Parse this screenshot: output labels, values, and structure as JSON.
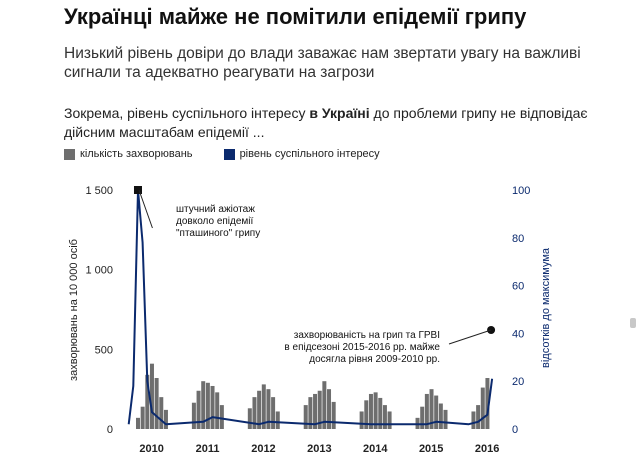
{
  "title": "Українці майже не помітили епідемії грипу",
  "subtitle": "Низький рівень довіри до влади заважає нам звертати увагу на важливі сигнали та адекватно реагувати на загрози",
  "lead": {
    "before": "Зокрема, рівень суспільного інтересу ",
    "bold": "в Україні",
    "after": " до проблеми грипу не відповідає дійсним масштабам епідемії ..."
  },
  "legend": {
    "bars": "кількість захворювань",
    "line": "рівень суспільного інтересу"
  },
  "colors": {
    "bars": "#6e6e6e",
    "line": "#0b2a6e",
    "marker": "#111111"
  },
  "chart_data": {
    "type": "bar",
    "ylabel": "захворювань на 10 000 осіб",
    "y2label": "відсотків до максимума",
    "ylim": [
      0,
      1500
    ],
    "y2lim": [
      0,
      100
    ],
    "yticks": [
      "0",
      "500",
      "1 000",
      "1 500"
    ],
    "y2ticks": [
      "0",
      "20",
      "40",
      "60",
      "80",
      "100"
    ],
    "xticks": [
      "2010",
      "2011",
      "2012",
      "2013",
      "2014",
      "2015",
      "2016"
    ],
    "series": [
      {
        "type": "bar",
        "x": [
          "2009-10",
          "2009-11",
          "2009-12",
          "2010-01",
          "2010-02",
          "2010-03",
          "2010-04",
          "2010-10",
          "2010-11",
          "2010-12",
          "2011-01",
          "2011-02",
          "2011-03",
          "2011-04",
          "2011-10",
          "2011-11",
          "2011-12",
          "2012-01",
          "2012-02",
          "2012-03",
          "2012-04",
          "2012-10",
          "2012-11",
          "2012-12",
          "2013-01",
          "2013-02",
          "2013-03",
          "2013-04",
          "2013-10",
          "2013-11",
          "2013-12",
          "2014-01",
          "2014-02",
          "2014-03",
          "2014-04",
          "2014-10",
          "2014-11",
          "2014-12",
          "2015-01",
          "2015-02",
          "2015-03",
          "2015-04",
          "2015-10",
          "2015-11",
          "2015-12",
          "2016-01"
        ],
        "values": [
          70,
          140,
          340,
          410,
          320,
          200,
          120,
          165,
          240,
          300,
          290,
          270,
          230,
          150,
          130,
          200,
          240,
          280,
          250,
          200,
          110,
          150,
          200,
          220,
          240,
          300,
          250,
          170,
          110,
          180,
          220,
          230,
          195,
          150,
          110,
          70,
          140,
          220,
          250,
          210,
          160,
          120,
          110,
          150,
          260,
          320
        ]
      },
      {
        "type": "line",
        "x": [
          "2009-08",
          "2009-09",
          "2009-10",
          "2009-11",
          "2009-12",
          "2010-01",
          "2010-04",
          "2010-12",
          "2011-02",
          "2011-12",
          "2012-02",
          "2012-12",
          "2013-02",
          "2013-12",
          "2014-02",
          "2014-12",
          "2015-02",
          "2015-09",
          "2015-11",
          "2016-01",
          "2016-02"
        ],
        "values": [
          2,
          18,
          100,
          78,
          20,
          7,
          2,
          3,
          5,
          2,
          3,
          2,
          3,
          2,
          2,
          2,
          3,
          2,
          3,
          6,
          21
        ]
      }
    ],
    "annotations": [
      {
        "text": [
          "штучний ажіотаж",
          "довколо епідемії",
          "\"пташиного\" грипу"
        ]
      },
      {
        "text": [
          "захворюваність на грип та ГРВІ",
          "в епідсезоні 2015-2016 рр. майже",
          "досягла рівня 2009-2010 рр."
        ]
      }
    ]
  }
}
